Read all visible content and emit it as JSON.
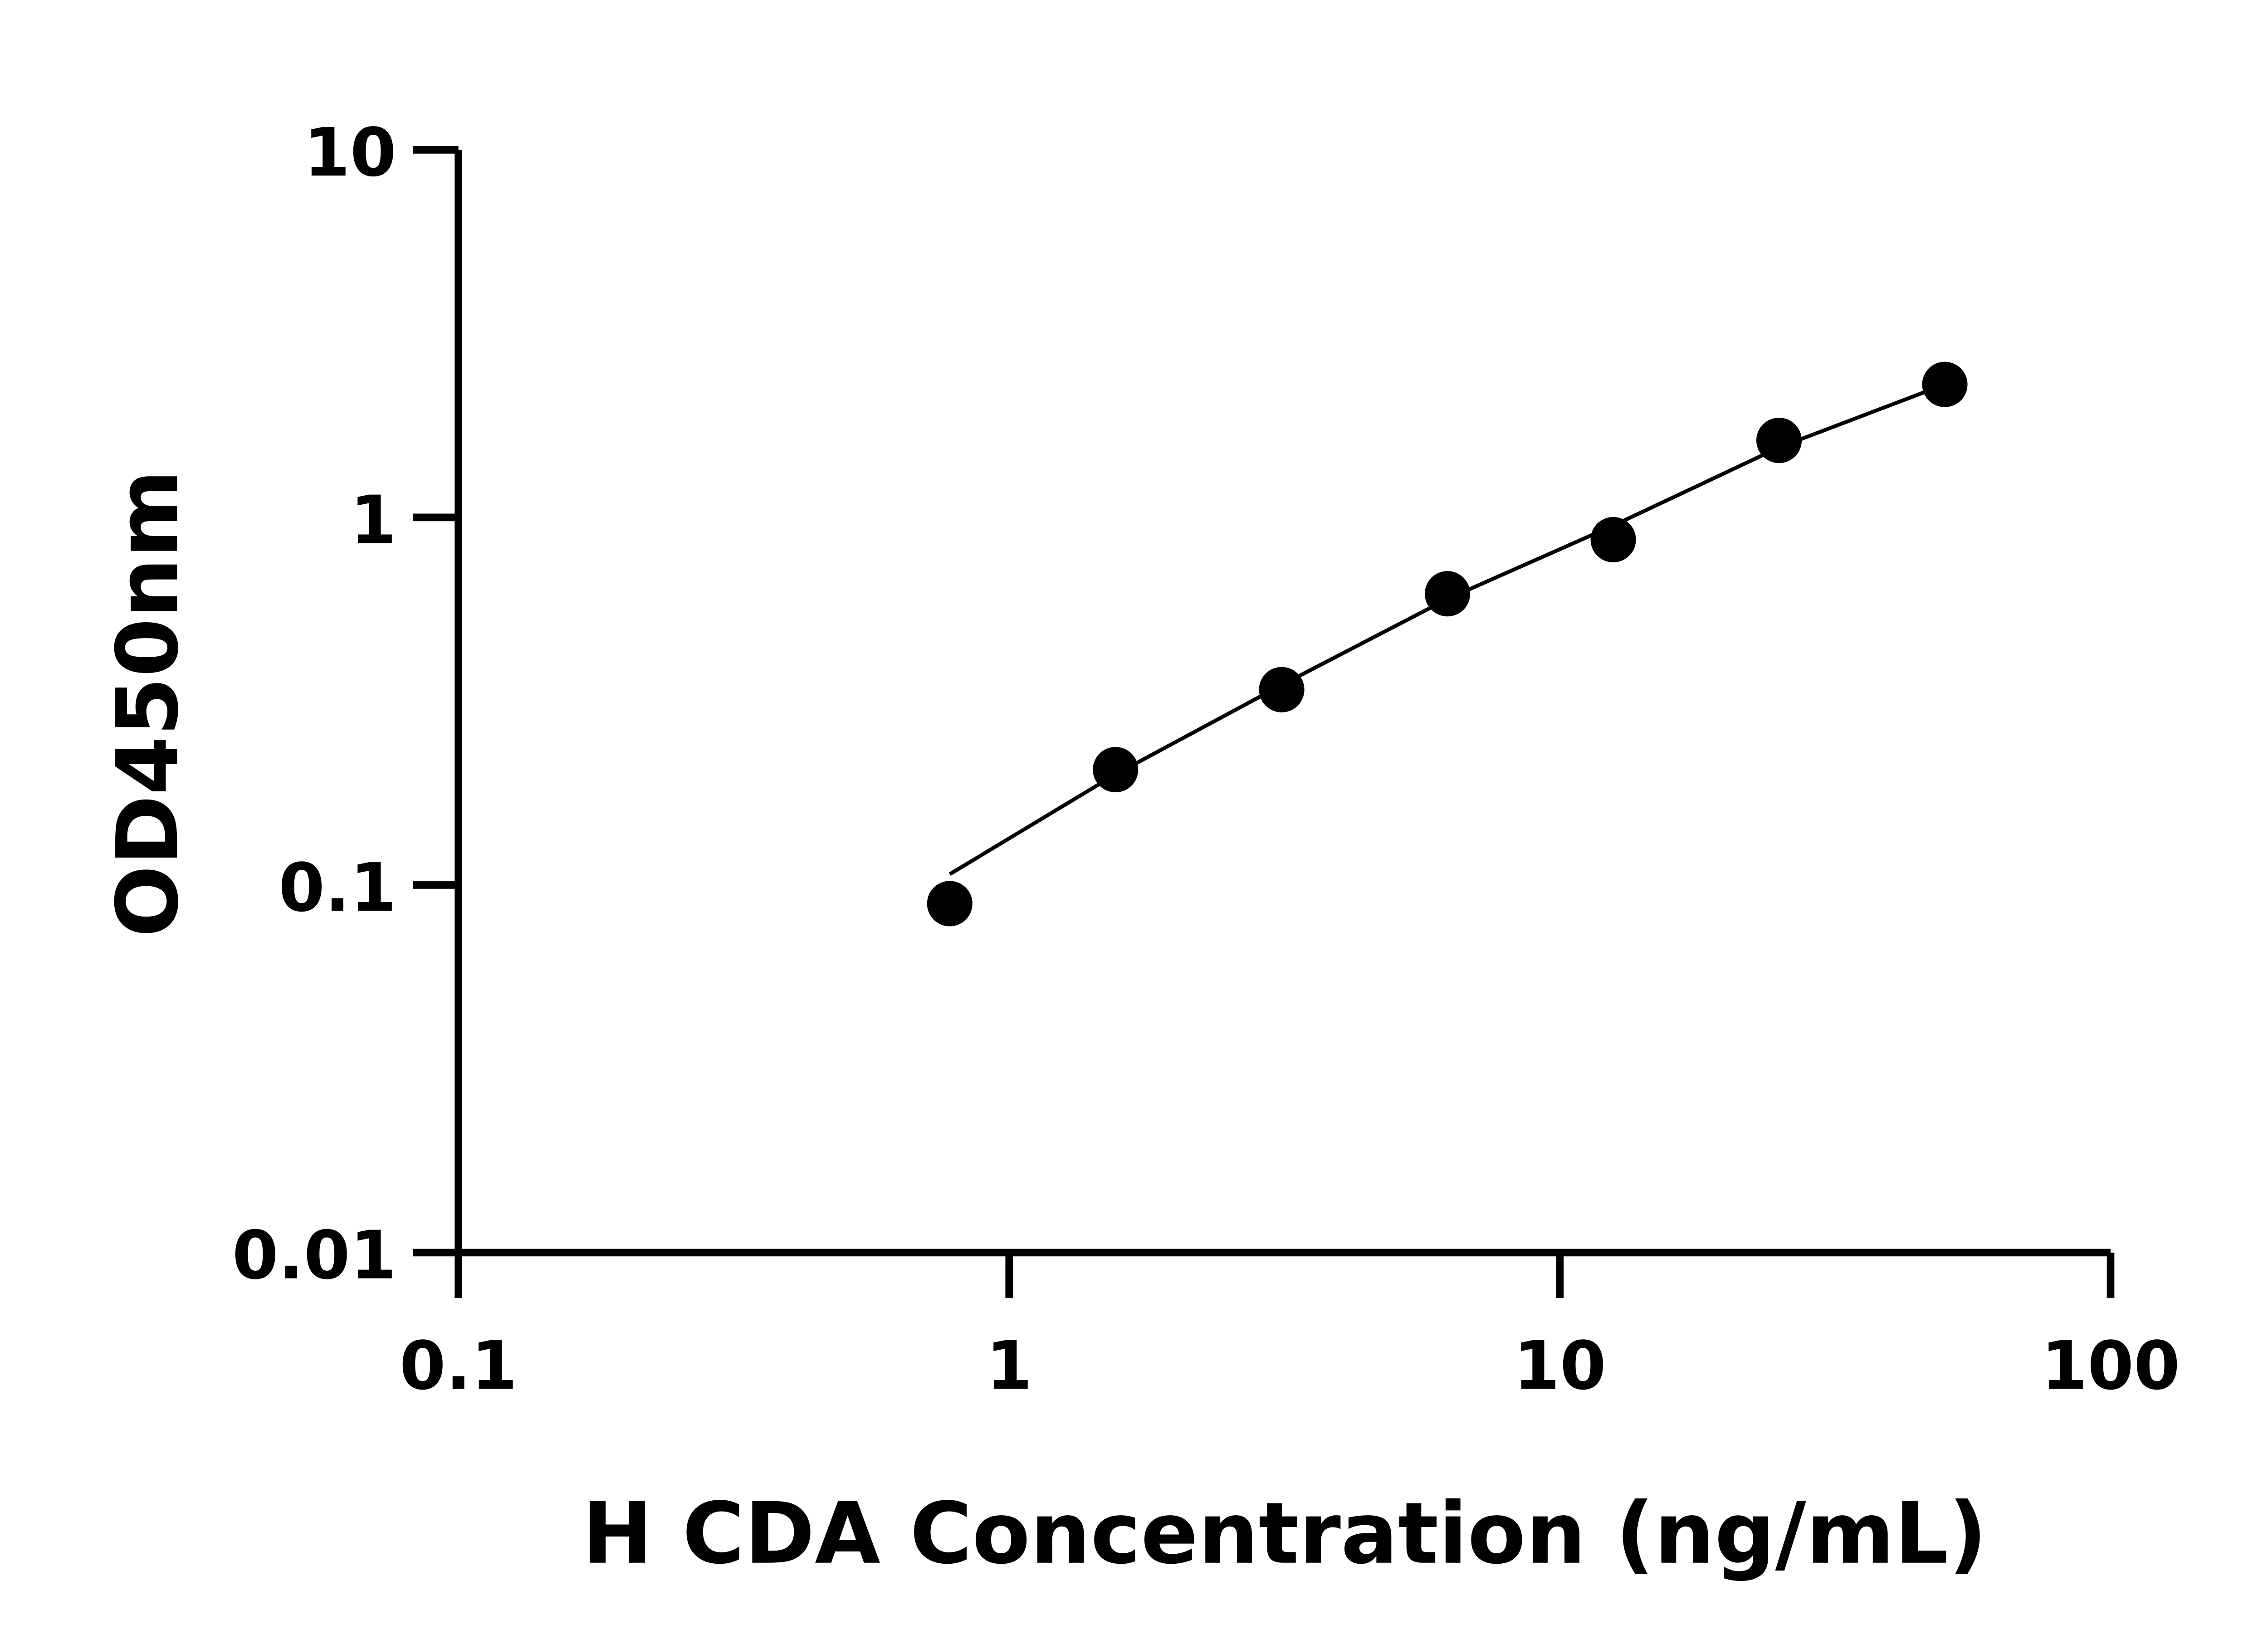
{
  "chart_data": {
    "type": "scatter",
    "title": "",
    "xlabel": "H CDA Concentration (ng/mL)",
    "ylabel": "OD450nm",
    "x_scale": "log",
    "y_scale": "log",
    "xlim": [
      0.1,
      100
    ],
    "ylim": [
      0.01,
      10
    ],
    "x_ticks": [
      0.1,
      1,
      10,
      100
    ],
    "x_tick_labels": [
      "0.1",
      "1",
      "10",
      "100"
    ],
    "y_ticks": [
      0.01,
      0.1,
      1,
      10
    ],
    "y_tick_labels": [
      "0.01",
      "0.1",
      "1",
      "10"
    ],
    "grid": false,
    "legend": "none",
    "color": "#000000",
    "points": [
      {
        "x": 0.78,
        "y": 0.089
      },
      {
        "x": 1.56,
        "y": 0.206
      },
      {
        "x": 3.125,
        "y": 0.34
      },
      {
        "x": 6.25,
        "y": 0.62
      },
      {
        "x": 12.5,
        "y": 0.87
      },
      {
        "x": 25,
        "y": 1.62
      },
      {
        "x": 50,
        "y": 2.3
      }
    ],
    "fit_curve": [
      {
        "x": 0.78,
        "y": 0.107
      },
      {
        "x": 1.56,
        "y": 0.2
      },
      {
        "x": 3.125,
        "y": 0.35
      },
      {
        "x": 6.25,
        "y": 0.6
      },
      {
        "x": 12.5,
        "y": 0.95
      },
      {
        "x": 25,
        "y": 1.55
      },
      {
        "x": 50,
        "y": 2.3
      }
    ]
  }
}
